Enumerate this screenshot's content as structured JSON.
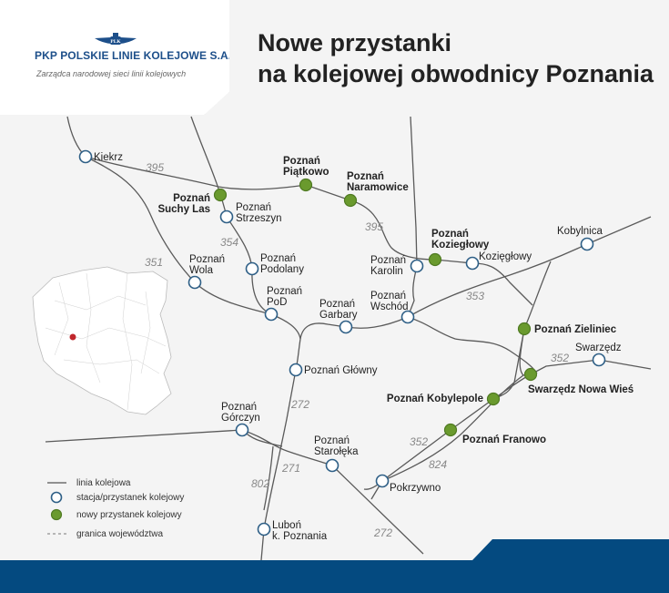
{
  "header": {
    "company": "PKP POLSKIE LINIE KOLEJOWE S.A.",
    "subtitle": "Zarządca narodowej sieci linii kolejowych",
    "logo_text": "PLK"
  },
  "title": {
    "line1": "Nowe przystanki",
    "line2": "na kolejowej obwodnicy Poznania"
  },
  "stations": {
    "kiekrz": "Kiekrz",
    "strzeszyn": [
      "Poznań",
      "Strzeszyn"
    ],
    "podolany": [
      "Poznań",
      "Podolany"
    ],
    "wola": [
      "Poznań",
      "Wola"
    ],
    "pod": [
      "Poznań",
      "PoD"
    ],
    "garbary": [
      "Poznań",
      "Garbary"
    ],
    "wschod": [
      "Poznań",
      "Wschód"
    ],
    "karolin": [
      "Poznań",
      "Karolin"
    ],
    "kozieglowy": "Kozięgłowy",
    "kobylnica": "Kobylnica",
    "swarzedz": "Swarzędz",
    "glowny": "Poznań Główny",
    "gorczyn": [
      "Poznań",
      "Górczyn"
    ],
    "staroleka": [
      "Poznań",
      "Starołęka"
    ],
    "pokrzywno": "Pokrzywno",
    "lubon": [
      "Luboń",
      "k. Poznania"
    ]
  },
  "new_stations": {
    "suchy_las": [
      "Poznań",
      "Suchy Las"
    ],
    "piatkowo": [
      "Poznań",
      "Piątkowo"
    ],
    "naramowice": [
      "Poznań",
      "Naramowice"
    ],
    "kozieglowy": [
      "Poznań",
      "Koziegłowy"
    ],
    "zieliniec": "Poznań Zieliniec",
    "swarzedz_nowa_wies": "Swarzędz Nowa Wieś",
    "kobylepole": "Poznań Kobylepole",
    "franowo": "Poznań Franowo"
  },
  "line_numbers": {
    "l395a": "395",
    "l395b": "395",
    "l354": "354",
    "l351": "351",
    "l353": "353",
    "l352a": "352",
    "l352b": "352",
    "l272a": "272",
    "l272b": "272",
    "l271": "271",
    "l802": "802",
    "l824": "824"
  },
  "legend": {
    "line": "linia kolejowa",
    "station": "stacja/przystanek kolejowy",
    "new_station": "nowy przystanek kolejowy",
    "border": "granica województwa"
  },
  "colors": {
    "brand_blue": "#044a80",
    "new_station_green": "#6a9a2e",
    "station_outline": "#2e5f86",
    "inset_marker_red": "#c0262c"
  }
}
